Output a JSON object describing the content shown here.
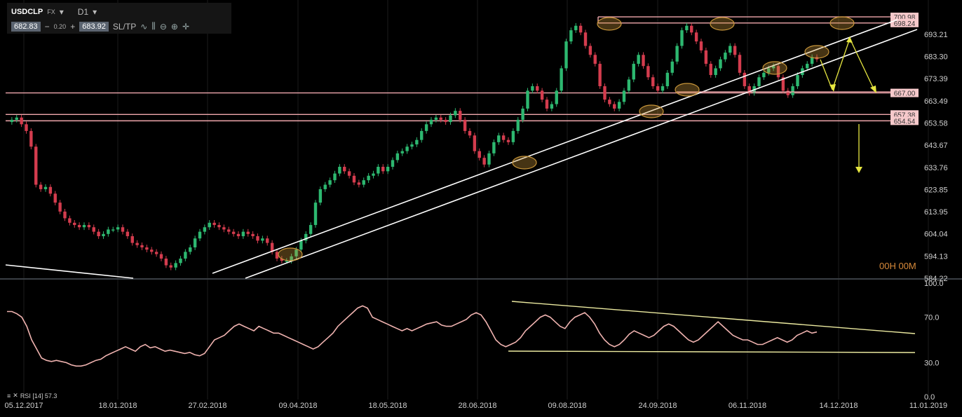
{
  "toolbar": {
    "symbol": "USDCLP",
    "market": "FX",
    "timeframe": "D1",
    "bid": "682.83",
    "minus": "−",
    "spread": "0.20",
    "plus": "+",
    "ask": "683.92",
    "sltp": "SL/TP"
  },
  "timer": "00H 00M",
  "rsi_label": "RSI [14] 57.3",
  "colors": {
    "bull": "#2db870",
    "bear": "#d43c4e",
    "level": "#f1a8ad",
    "rsi": "#f0b3b0",
    "trend": "#ffffff",
    "yellow": "#e6e640",
    "highlight": "#c8963a"
  },
  "chart_data": [
    {
      "type": "candlestick",
      "title": "USDCLP D1",
      "x_ticks": [
        "05.12.2017",
        "18.01.2018",
        "27.02.2018",
        "09.04.2018",
        "18.05.2018",
        "28.06.2018",
        "09.08.2018",
        "24.09.2018",
        "06.11.2018",
        "14.12.2018",
        "11.01.2019"
      ],
      "y_ticks": [
        "693.21",
        "683.30",
        "673.39",
        "663.49",
        "653.58",
        "643.67",
        "633.76",
        "623.85",
        "613.95",
        "604.04",
        "594.13",
        "584.22"
      ],
      "ylim": [
        584.22,
        703.5
      ],
      "levels": [
        {
          "label": "700.98",
          "value": 700.98
        },
        {
          "label": "698.24",
          "value": 698.24
        },
        {
          "label": "667.00",
          "value": 667.0
        },
        {
          "label": "657.38",
          "value": 657.38
        },
        {
          "label": "654.54",
          "value": 654.54
        }
      ],
      "close_series": [
        654,
        655,
        656,
        653,
        650,
        643,
        626,
        624,
        625,
        622,
        618,
        614,
        611,
        609,
        608,
        607,
        608,
        607,
        605,
        603,
        604,
        606,
        606,
        607,
        605,
        603,
        600,
        599,
        598,
        597,
        596,
        595,
        593,
        590,
        589,
        591,
        593,
        596,
        598,
        602,
        605,
        607,
        609,
        608,
        607,
        606,
        605,
        604,
        603,
        605,
        604,
        603,
        601,
        602,
        600,
        596,
        593,
        592,
        592,
        594,
        597,
        601,
        604,
        608,
        618,
        624,
        626,
        628,
        631,
        634,
        632,
        630,
        627,
        626,
        628,
        630,
        631,
        634,
        632,
        634,
        637,
        640,
        641,
        643,
        644,
        646,
        650,
        653,
        655,
        656,
        655,
        654,
        657,
        659,
        655,
        650,
        648,
        641,
        638,
        635,
        640,
        645,
        648,
        646,
        645,
        650,
        655,
        660,
        668,
        670,
        668,
        664,
        660,
        662,
        668,
        678,
        690,
        695,
        697,
        694,
        688,
        684,
        680,
        670,
        664,
        662,
        660,
        663,
        668,
        673,
        680,
        684,
        679,
        674,
        670,
        668,
        670,
        676,
        681,
        688,
        695,
        697,
        694,
        690,
        686,
        680,
        675,
        678,
        682,
        685,
        688,
        684,
        676,
        670,
        667,
        670,
        674,
        676,
        678,
        679,
        674,
        668,
        666,
        670,
        675,
        678,
        680,
        683,
        682
      ]
    },
    {
      "type": "line",
      "title": "RSI [14]",
      "y_ticks": [
        "100.0",
        "70.0",
        "30.0",
        "0.0"
      ],
      "ylim": [
        0,
        100
      ],
      "values": [
        75,
        75,
        73,
        70,
        62,
        50,
        42,
        34,
        32,
        31,
        32,
        31,
        30,
        28,
        27,
        27,
        28,
        30,
        32,
        33,
        36,
        38,
        40,
        42,
        44,
        42,
        40,
        44,
        46,
        43,
        44,
        42,
        40,
        41,
        40,
        39,
        38,
        39,
        37,
        36,
        38,
        44,
        50,
        52,
        54,
        58,
        62,
        64,
        62,
        60,
        58,
        62,
        60,
        58,
        56,
        56,
        54,
        52,
        50,
        48,
        46,
        44,
        42,
        44,
        48,
        52,
        56,
        62,
        66,
        70,
        74,
        78,
        80,
        78,
        70,
        68,
        66,
        64,
        62,
        60,
        58,
        60,
        58,
        60,
        62,
        64,
        65,
        66,
        63,
        62,
        62,
        64,
        66,
        68,
        72,
        74,
        72,
        66,
        58,
        50,
        46,
        44,
        46,
        48,
        52,
        58,
        62,
        66,
        70,
        72,
        70,
        66,
        62,
        60,
        66,
        70,
        72,
        74,
        70,
        64,
        56,
        50,
        46,
        44,
        46,
        50,
        55,
        58,
        56,
        54,
        52,
        54,
        58,
        62,
        64,
        62,
        58,
        54,
        50,
        48,
        50,
        54,
        58,
        62,
        66,
        62,
        58,
        54,
        52,
        50,
        50,
        48,
        46,
        46,
        48,
        50,
        52,
        50,
        48,
        50,
        54,
        56,
        58,
        56,
        57
      ]
    }
  ],
  "annotations": {
    "trend_lines": 4,
    "rsi_channel": "descending upper line, flat lower line",
    "projection": "yellow arrows down to 667.00 then down below 654.54"
  }
}
